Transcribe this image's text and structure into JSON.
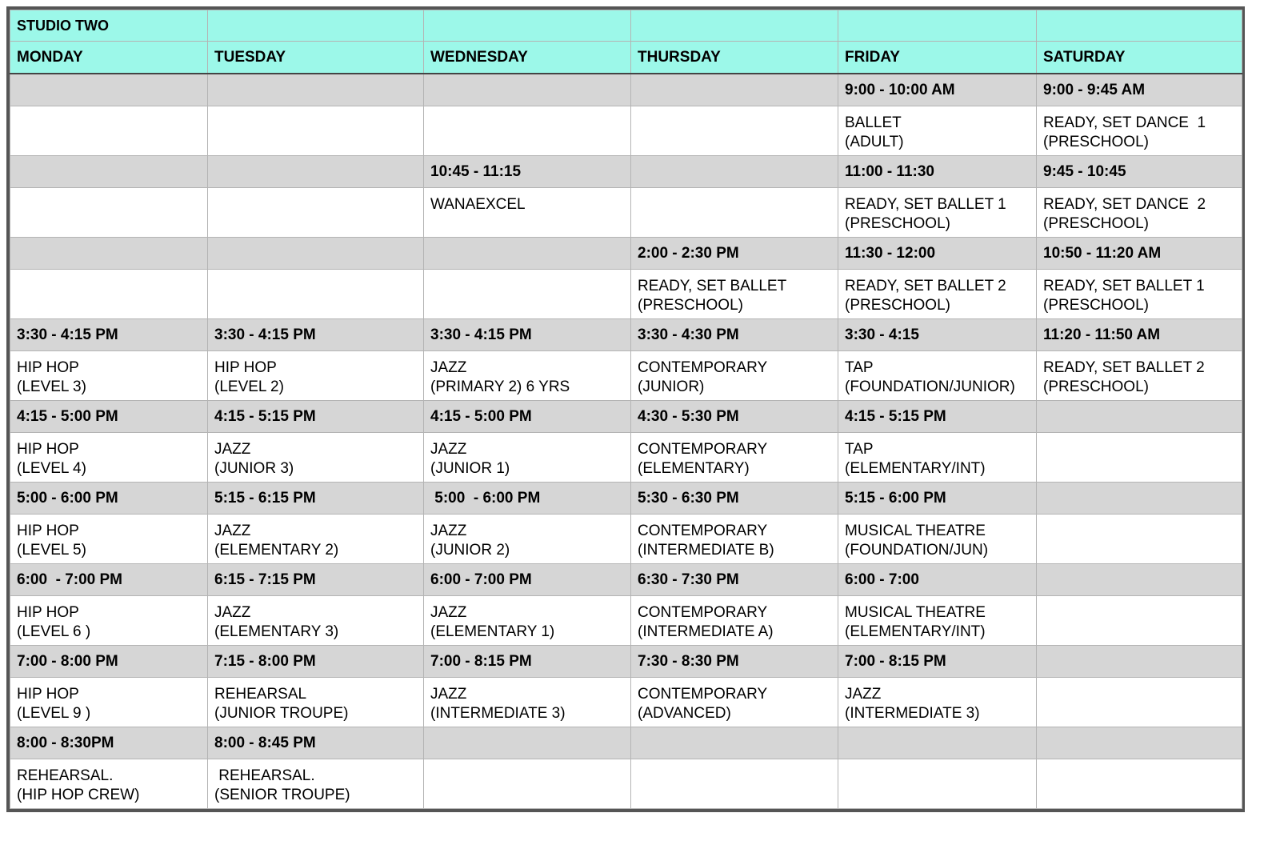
{
  "title": "STUDIO TWO",
  "days": [
    "MONDAY",
    "TUESDAY",
    "WEDNESDAY",
    "THURSDAY",
    "FRIDAY",
    "SATURDAY"
  ],
  "colors": {
    "header_bg": "#9cf8e9",
    "time_row_bg": "#d6d6d6",
    "frame": "#555555"
  },
  "blocks": [
    {
      "times": [
        "",
        "",
        "",
        "",
        "9:00 - 10:00 AM",
        "9:00 - 9:45 AM"
      ],
      "classes": [
        "",
        "",
        "",
        "",
        "BALLET\n(ADULT)",
        "READY, SET DANCE  1\n(PRESCHOOL)"
      ]
    },
    {
      "times": [
        "",
        "",
        "10:45 - 11:15",
        "",
        "11:00 - 11:30",
        "9:45 - 10:45"
      ],
      "classes": [
        "",
        "",
        "WANAEXCEL",
        "",
        "READY, SET BALLET 1\n(PRESCHOOL)",
        "READY, SET DANCE  2\n(PRESCHOOL)"
      ]
    },
    {
      "times": [
        "",
        "",
        "",
        "2:00 - 2:30 PM",
        "11:30 - 12:00",
        "10:50 - 11:20 AM"
      ],
      "classes": [
        "",
        "",
        "",
        "READY, SET BALLET\n(PRESCHOOL)",
        "READY, SET BALLET 2\n(PRESCHOOL)",
        "READY, SET BALLET 1\n(PRESCHOOL)"
      ]
    },
    {
      "times": [
        "3:30 - 4:15 PM",
        "3:30 - 4:15 PM",
        "3:30 - 4:15 PM",
        "3:30 - 4:30 PM",
        "3:30 - 4:15",
        "11:20 - 11:50 AM"
      ],
      "classes": [
        "HIP HOP\n(LEVEL 3)",
        "HIP HOP\n(LEVEL 2)",
        "JAZZ\n(PRIMARY 2) 6 YRS",
        "CONTEMPORARY\n(JUNIOR)",
        "TAP\n(FOUNDATION/JUNIOR)",
        "READY, SET BALLET 2\n(PRESCHOOL)"
      ]
    },
    {
      "times": [
        "4:15 - 5:00 PM",
        "4:15 - 5:15 PM",
        "4:15 - 5:00 PM",
        "4:30 - 5:30 PM",
        "4:15 - 5:15 PM",
        ""
      ],
      "classes": [
        "HIP HOP\n(LEVEL 4)",
        "JAZZ\n(JUNIOR 3)",
        "JAZZ\n(JUNIOR 1)",
        "CONTEMPORARY\n(ELEMENTARY)",
        "TAP\n(ELEMENTARY/INT)",
        ""
      ]
    },
    {
      "times": [
        "5:00 - 6:00 PM",
        "5:15 - 6:15 PM",
        " 5:00  - 6:00 PM",
        "5:30 - 6:30 PM",
        "5:15 - 6:00 PM",
        ""
      ],
      "classes": [
        "HIP HOP\n(LEVEL 5)",
        "JAZZ\n(ELEMENTARY 2)",
        "JAZZ\n(JUNIOR 2)",
        "CONTEMPORARY\n(INTERMEDIATE B)",
        "MUSICAL THEATRE\n(FOUNDATION/JUN)",
        ""
      ]
    },
    {
      "times": [
        "6:00  - 7:00 PM",
        "6:15 - 7:15 PM",
        "6:00 - 7:00 PM",
        "6:30 - 7:30 PM",
        "6:00 - 7:00",
        ""
      ],
      "classes": [
        "HIP HOP\n(LEVEL 6 )",
        "JAZZ\n(ELEMENTARY 3)",
        "JAZZ\n(ELEMENTARY 1)",
        "CONTEMPORARY\n(INTERMEDIATE A)",
        "MUSICAL THEATRE\n(ELEMENTARY/INT)",
        ""
      ]
    },
    {
      "times": [
        "7:00 - 8:00 PM",
        "7:15 - 8:00 PM",
        "7:00 - 8:15 PM",
        "7:30 - 8:30 PM",
        "7:00 - 8:15 PM",
        ""
      ],
      "classes": [
        "HIP HOP\n(LEVEL 9 )",
        "REHEARSAL\n(JUNIOR TROUPE)",
        "JAZZ\n(INTERMEDIATE 3)",
        "CONTEMPORARY\n(ADVANCED)",
        "JAZZ\n(INTERMEDIATE 3)",
        ""
      ]
    },
    {
      "times": [
        "8:00 - 8:30PM",
        "8:00 - 8:45 PM",
        "",
        "",
        "",
        ""
      ],
      "classes": [
        "REHEARSAL.\n(HIP HOP CREW)",
        " REHEARSAL.\n(SENIOR TROUPE)",
        "",
        "",
        "",
        ""
      ]
    }
  ]
}
